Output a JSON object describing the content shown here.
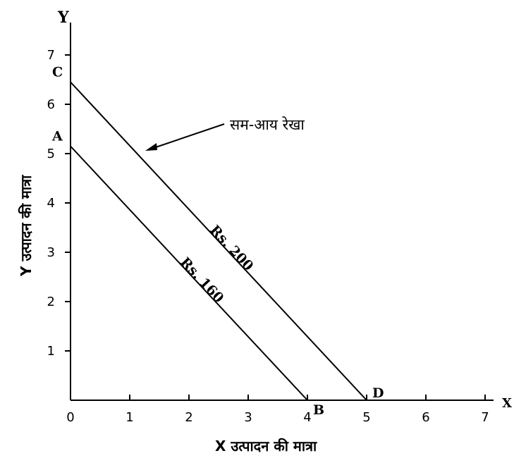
{
  "chart_data": {
    "type": "line",
    "y_axis_letter": "Y",
    "x_axis_letter": "X",
    "xlabel": "X उत्पादन की मात्रा",
    "ylabel": "Y उत्पादन की मात्रा",
    "xlim": [
      0,
      7
    ],
    "ylim": [
      0,
      7
    ],
    "x_ticks": [
      "0",
      "1",
      "2",
      "3",
      "4",
      "5",
      "6",
      "7"
    ],
    "y_ticks": [
      "1",
      "2",
      "3",
      "4",
      "5",
      "6",
      "7"
    ],
    "grid": false,
    "series": [
      {
        "name": "Rs. 160",
        "points": [
          [
            0,
            5.15
          ],
          [
            4,
            0
          ]
        ],
        "start_label": "A",
        "end_label": "B"
      },
      {
        "name": "Rs. 200",
        "points": [
          [
            0,
            6.45
          ],
          [
            5,
            0
          ]
        ],
        "start_label": "C",
        "end_label": "D"
      }
    ],
    "annotation": {
      "text": "सम-आय रेखा",
      "target_x": 1.3,
      "target_y": 4.9
    }
  }
}
